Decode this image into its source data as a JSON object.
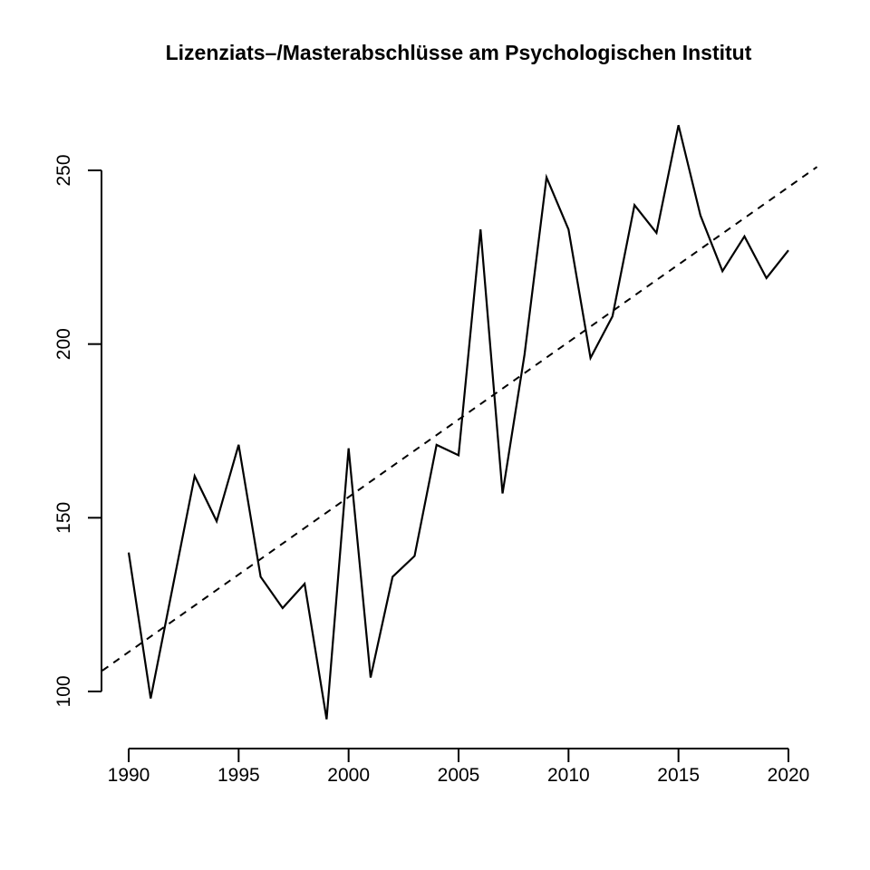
{
  "chart_data": {
    "type": "line",
    "title": "Lizenziats–/Masterabschlüsse am Psychologischen Institut",
    "x": [
      1990,
      1991,
      1992,
      1993,
      1994,
      1995,
      1996,
      1997,
      1998,
      1999,
      2000,
      2001,
      2002,
      2003,
      2004,
      2005,
      2006,
      2007,
      2008,
      2009,
      2010,
      2011,
      2012,
      2013,
      2014,
      2015,
      2016,
      2017,
      2018,
      2019,
      2020
    ],
    "values": [
      140,
      98,
      130,
      162,
      149,
      171,
      133,
      124,
      131,
      92,
      170,
      104,
      133,
      139,
      171,
      168,
      233,
      157,
      197,
      248,
      233,
      196,
      208,
      240,
      232,
      263,
      237,
      221,
      231,
      219,
      227
    ],
    "trend_line": {
      "style": "dashed",
      "x1": 1988.8,
      "v1": 106,
      "x2": 2021.3,
      "v2": 251
    },
    "xticks": [
      "1990",
      "1995",
      "2000",
      "2005",
      "2010",
      "2015",
      "2020"
    ],
    "yticks": [
      "100",
      "150",
      "200",
      "250"
    ],
    "xlim": [
      1988.8,
      2021.3
    ],
    "ylim": [
      92,
      264
    ],
    "xlabel": "",
    "ylabel": "",
    "grid": false,
    "legend": "none",
    "line_color": "#000000",
    "trend_color": "#000000",
    "axis_color": "#000000",
    "background_color": "#ffffff"
  }
}
